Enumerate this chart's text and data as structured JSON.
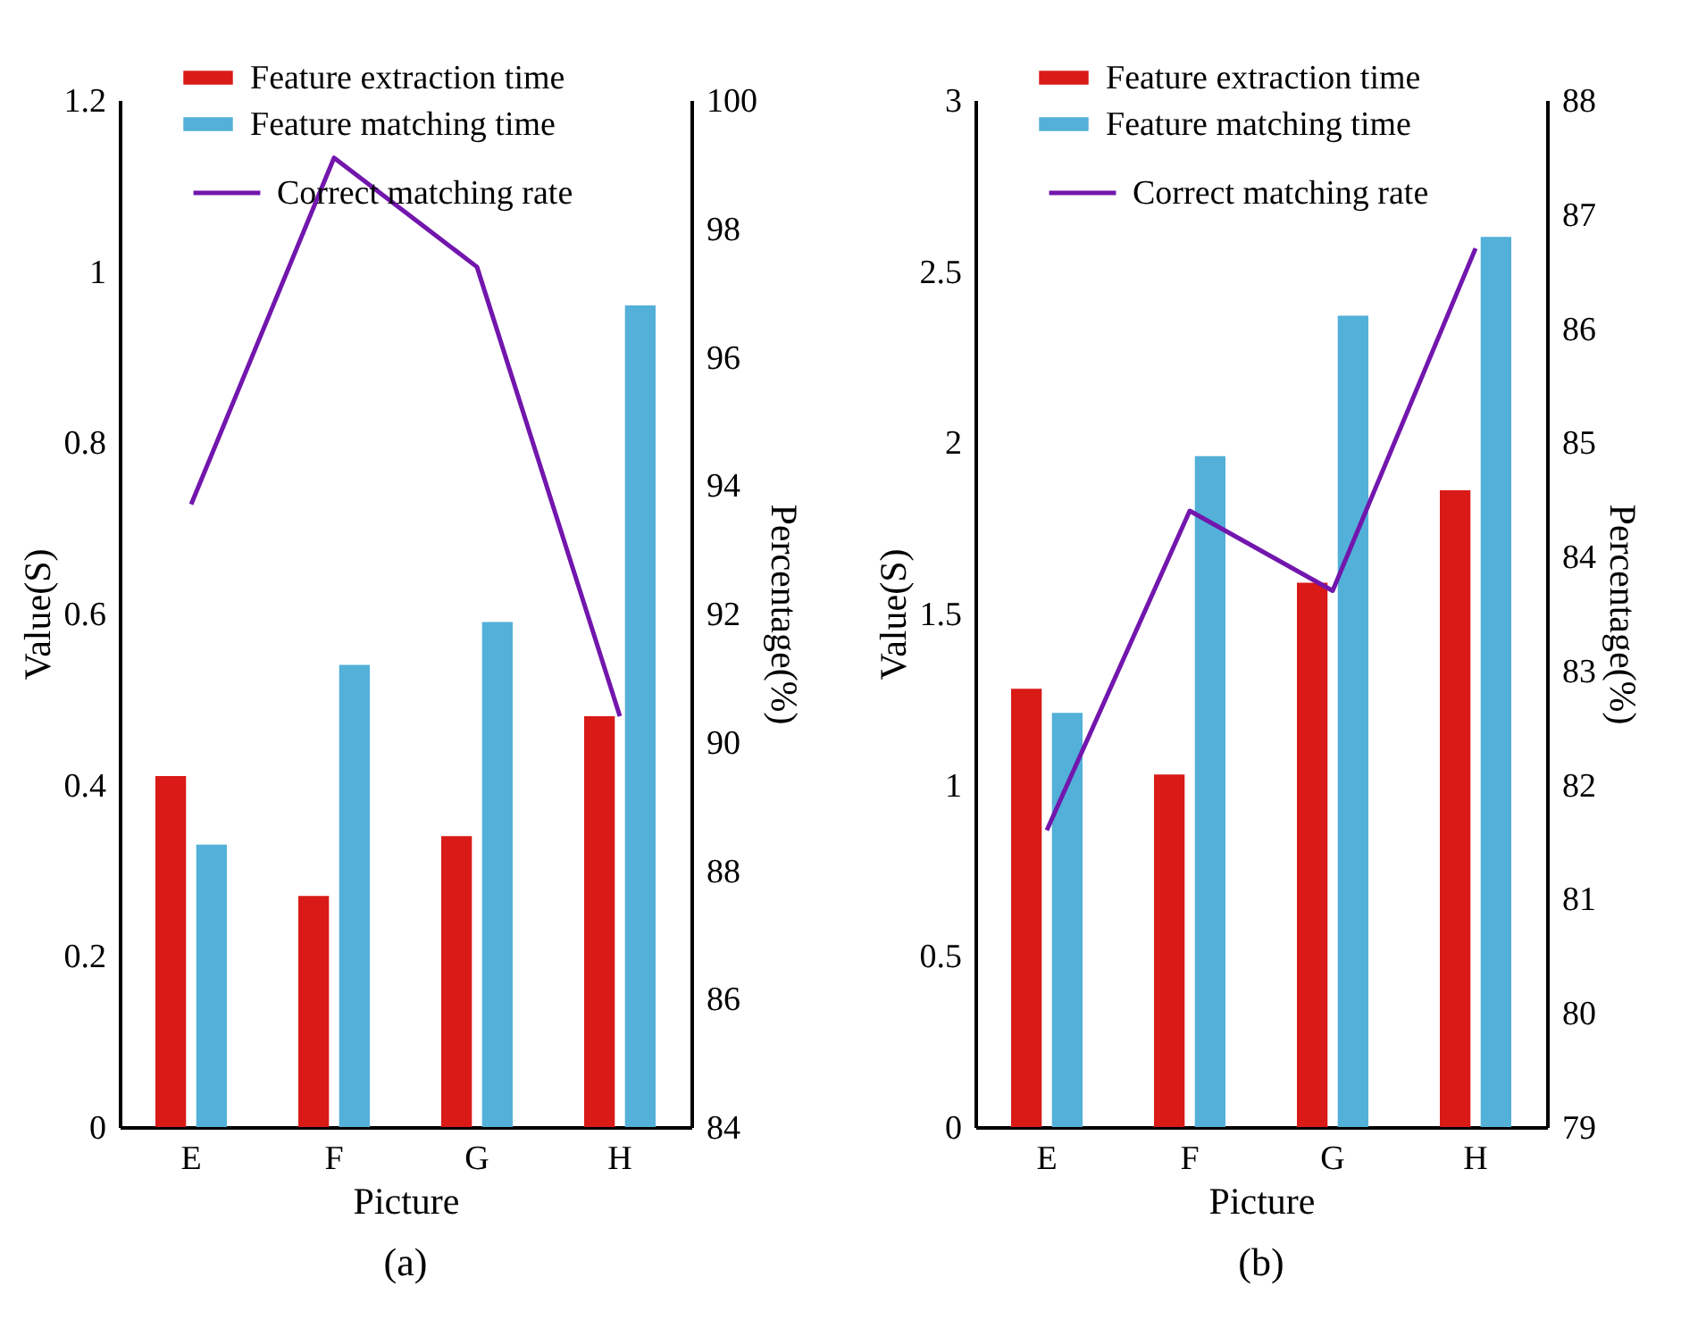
{
  "chart_data": [
    {
      "type": "bar",
      "categories": [
        "E",
        "F",
        "G",
        "H"
      ],
      "xlabel": "Picture",
      "ylabel": "Value(S)",
      "y2label": "Percentage(%)",
      "ylim": [
        0,
        1.2
      ],
      "yticks": [
        0,
        0.2,
        0.4,
        0.6,
        0.8,
        1,
        1.2
      ],
      "y2lim": [
        84,
        100
      ],
      "y2ticks": [
        84,
        86,
        88,
        90,
        92,
        94,
        96,
        98,
        100
      ],
      "legend": "top",
      "annotations": [
        "(a)"
      ],
      "series": [
        {
          "name": "Feature extraction time",
          "type": "bar",
          "color": "#d91a17",
          "values": [
            0.41,
            0.27,
            0.34,
            0.48
          ]
        },
        {
          "name": "Feature matching time",
          "type": "bar",
          "color": "#53b0d8",
          "values": [
            0.33,
            0.54,
            0.59,
            0.96
          ]
        },
        {
          "name": "Correct matching rate",
          "type": "line",
          "axis": "y2",
          "color": "#7216ad",
          "values": [
            93.7,
            99.1,
            97.4,
            90.4
          ]
        }
      ]
    },
    {
      "type": "bar",
      "categories": [
        "E",
        "F",
        "G",
        "H"
      ],
      "xlabel": "Picture",
      "ylabel": "Value(S)",
      "y2label": "Percentage(%)",
      "ylim": [
        0,
        3
      ],
      "yticks": [
        0,
        0.5,
        1,
        1.5,
        2,
        2.5,
        3
      ],
      "y2lim": [
        79,
        88
      ],
      "y2ticks": [
        79,
        80,
        81,
        82,
        83,
        84,
        85,
        86,
        87,
        88
      ],
      "legend": "top",
      "annotations": [
        "(b)"
      ],
      "series": [
        {
          "name": "Feature extraction time",
          "type": "bar",
          "color": "#d91a17",
          "values": [
            1.28,
            1.03,
            1.59,
            1.86
          ]
        },
        {
          "name": "Feature matching time",
          "type": "bar",
          "color": "#53b0d8",
          "values": [
            1.21,
            1.96,
            2.37,
            2.6
          ]
        },
        {
          "name": "Correct matching rate",
          "type": "line",
          "axis": "y2",
          "color": "#7216ad",
          "values": [
            81.6,
            84.4,
            83.7,
            86.7
          ]
        }
      ]
    }
  ]
}
